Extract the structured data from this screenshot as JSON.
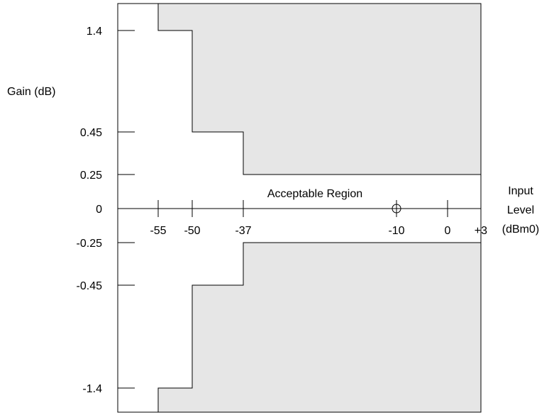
{
  "diagram": {
    "type": "gain tracking mask",
    "y_axis_label": "Gain (dB)",
    "x_axis_label_lines": [
      "Input",
      "Level",
      "(dBm0)"
    ],
    "region_label": "Acceptable Region",
    "reference_marker": {
      "x": -10,
      "y": 0
    },
    "y_ticks": [
      {
        "value": 1.4,
        "label": "1.4"
      },
      {
        "value": 0.45,
        "label": "0.45"
      },
      {
        "value": 0.25,
        "label": "0.25"
      },
      {
        "value": 0,
        "label": "0"
      },
      {
        "value": -0.25,
        "label": "-0.25"
      },
      {
        "value": -0.45,
        "label": "-0.45"
      },
      {
        "value": -1.4,
        "label": "-1.4"
      }
    ],
    "x_ticks": [
      {
        "value": -55,
        "label": "-55"
      },
      {
        "value": -50,
        "label": "-50"
      },
      {
        "value": -37,
        "label": "-37"
      },
      {
        "value": -10,
        "label": "-10"
      },
      {
        "value": 0,
        "label": "0"
      },
      {
        "value": 3,
        "label": "+3"
      }
    ],
    "upper_limit": [
      {
        "from": -55,
        "to": -50,
        "gain": 1.4
      },
      {
        "from": -50,
        "to": -37,
        "gain": 0.45
      },
      {
        "from": -37,
        "to": 3,
        "gain": 0.25
      }
    ],
    "lower_limit": [
      {
        "from": -55,
        "to": -50,
        "gain": -1.4
      },
      {
        "from": -50,
        "to": -37,
        "gain": -0.45
      },
      {
        "from": -37,
        "to": 3,
        "gain": -0.25
      }
    ],
    "colors": {
      "forbidden": "#e6e6e6",
      "line": "#000000"
    }
  }
}
